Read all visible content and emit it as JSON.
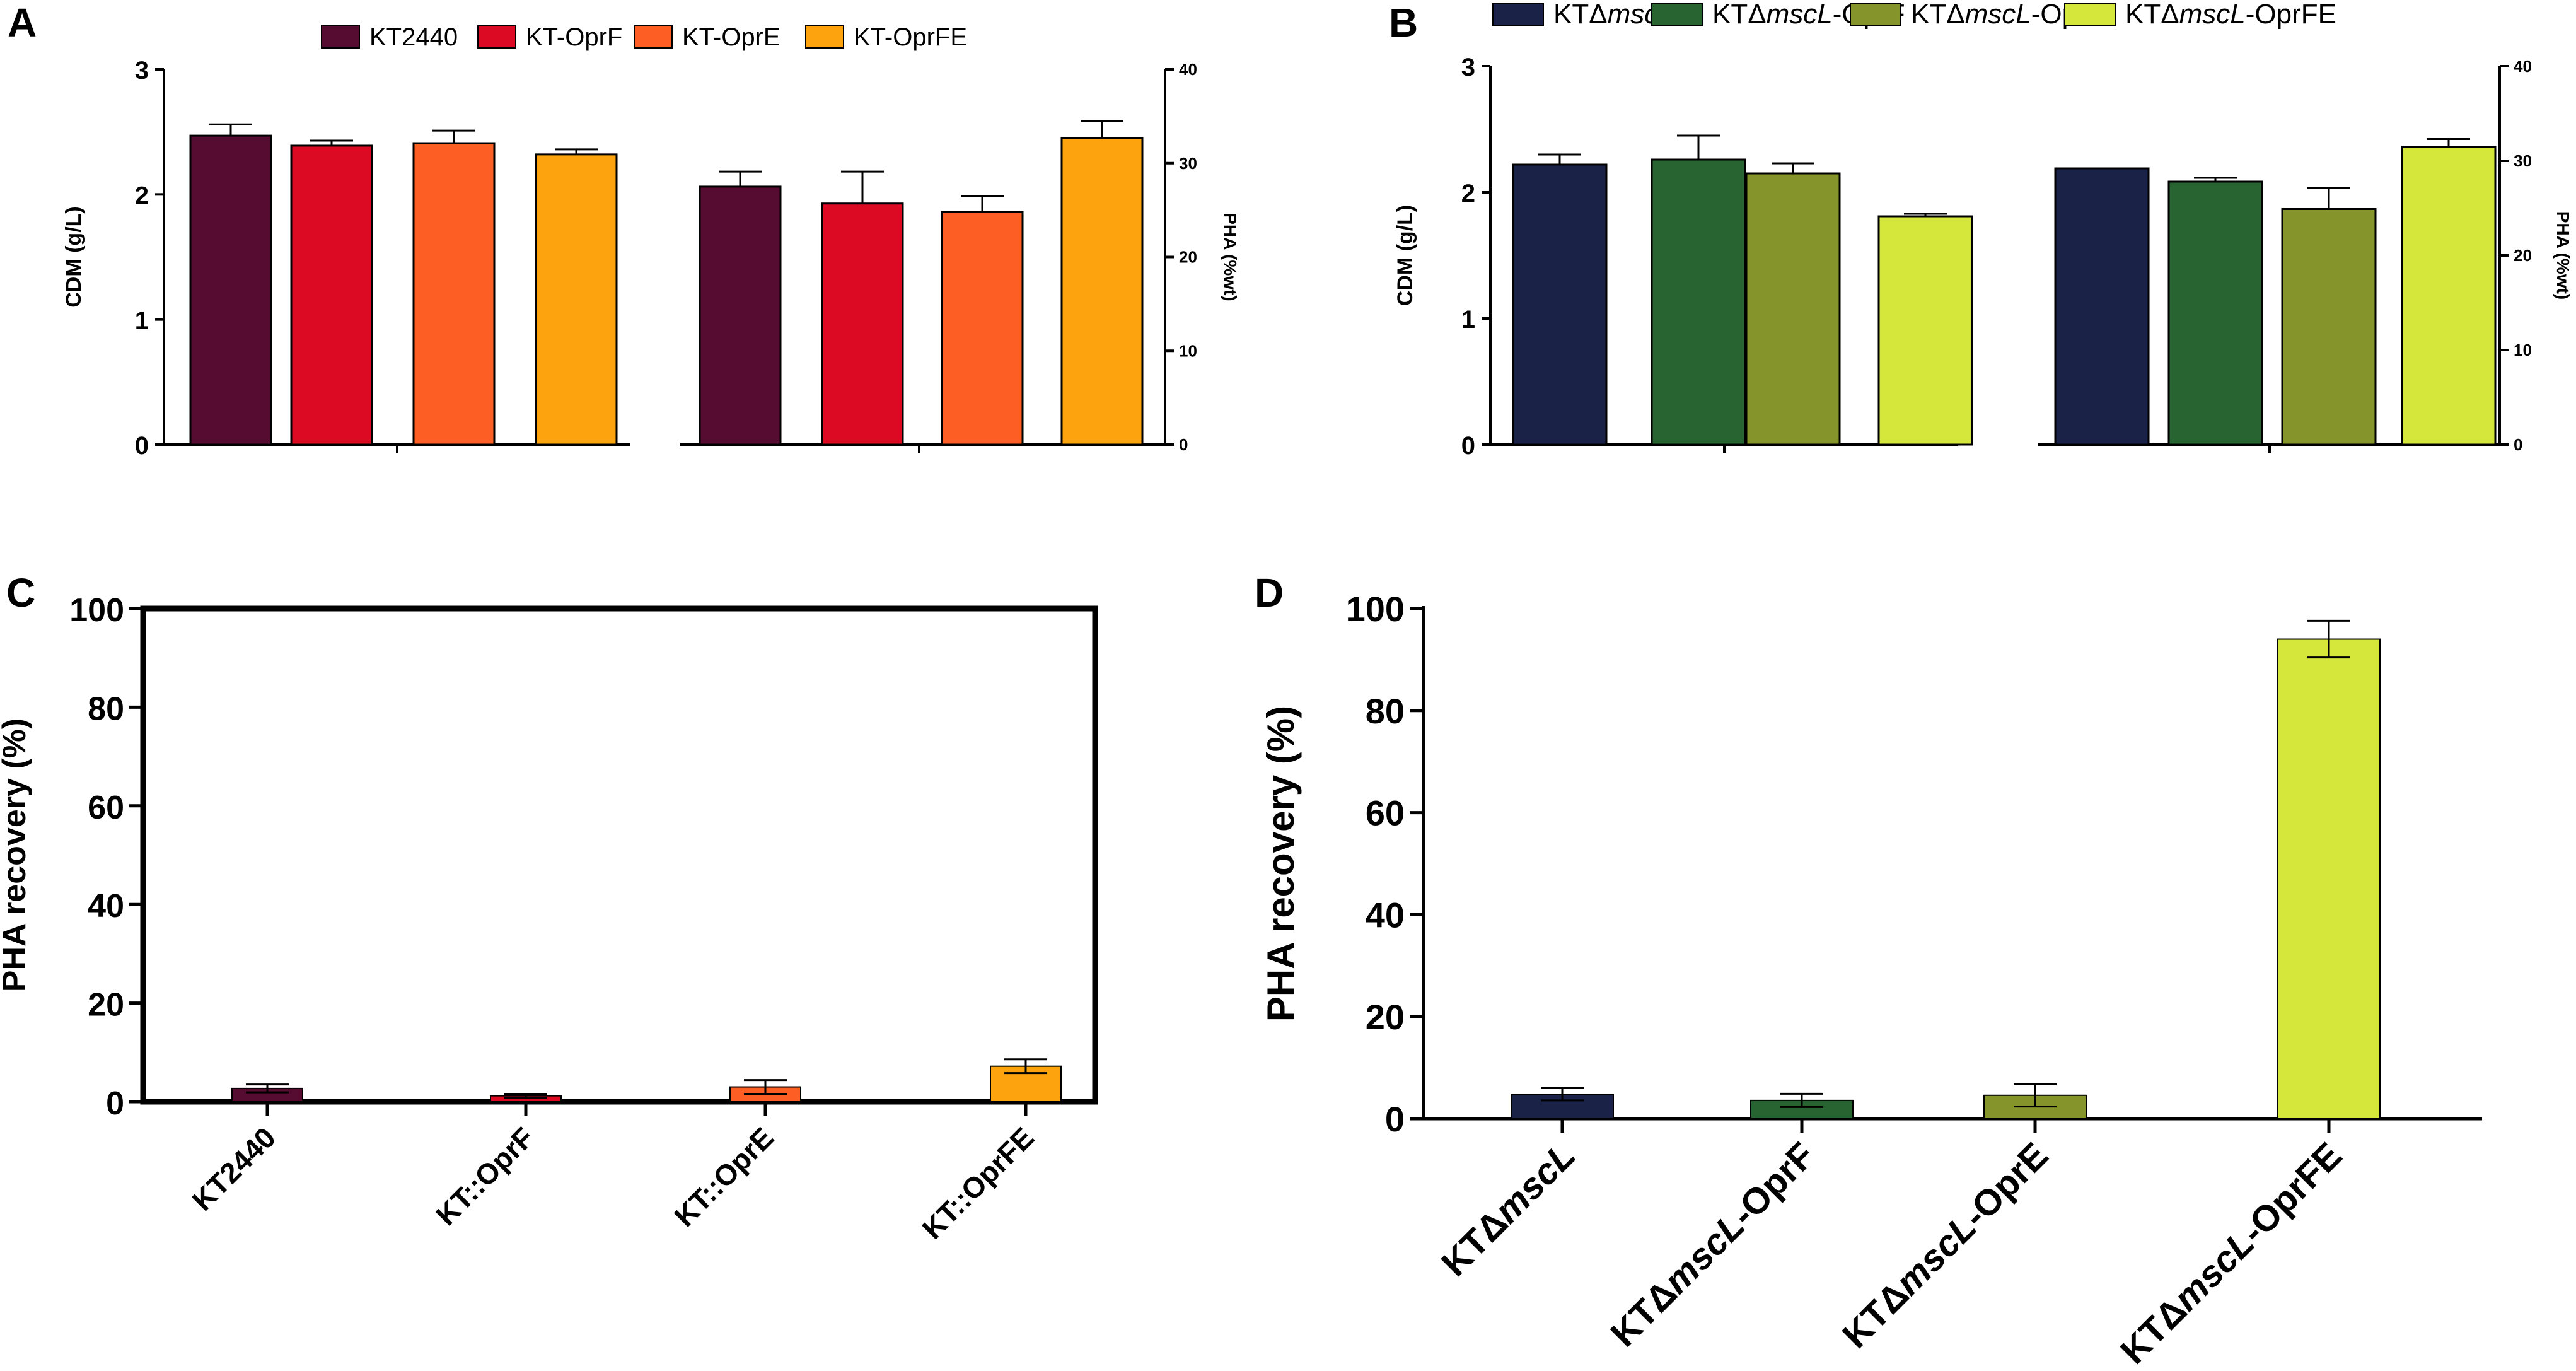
{
  "chart_data": [
    {
      "panel": "A",
      "type": "bar",
      "legend": [
        {
          "label": "KT2440",
          "color": "#560b31"
        },
        {
          "label": "KT-OprF",
          "color": "#dc0b23"
        },
        {
          "label": "KT-OprE",
          "color": "#fd5e24"
        },
        {
          "label": "KT-OprFE",
          "color": "#fda30d"
        }
      ],
      "left_axis": {
        "label": "CDM (g/L)",
        "range": [
          0,
          3
        ],
        "ticks": [
          0,
          1,
          2,
          3
        ],
        "tick_labels": [
          "0",
          "1",
          "2",
          "3"
        ]
      },
      "right_axis": {
        "label": "PHA (%wt)",
        "range": [
          0,
          40
        ],
        "ticks": [
          0,
          10,
          20,
          30,
          40
        ],
        "tick_labels": [
          "0",
          "10",
          "20",
          "30",
          "40"
        ]
      },
      "series": [
        {
          "name": "CDM",
          "axis": "left",
          "values": [
            2.47,
            2.39,
            2.41,
            2.32
          ],
          "errors": [
            0.09,
            0.04,
            0.1,
            0.04
          ]
        },
        {
          "name": "PHA",
          "axis": "right",
          "values": [
            27.5,
            25.7,
            24.8,
            32.7
          ],
          "errors": [
            1.6,
            3.4,
            1.7,
            1.8
          ]
        }
      ]
    },
    {
      "panel": "B",
      "type": "bar",
      "legend": [
        {
          "prefix": "KTΔ",
          "italic": "mscL",
          "suffix": "",
          "color": "#1b2247"
        },
        {
          "prefix": "KTΔ",
          "italic": "mscL",
          "suffix": "-OprF",
          "color": "#276431"
        },
        {
          "prefix": "KTΔ",
          "italic": "mscL",
          "suffix": "-OprE",
          "color": "#85952b"
        },
        {
          "prefix": "KTΔ",
          "italic": "mscL",
          "suffix": "-OprFE",
          "color": "#d6e73c"
        }
      ],
      "left_axis": {
        "label": "CDM (g/L)",
        "range": [
          0,
          3
        ],
        "ticks": [
          0,
          1,
          2,
          3
        ],
        "tick_labels": [
          "0",
          "1",
          "2",
          "3"
        ]
      },
      "right_axis": {
        "label": "PHA (%wt)",
        "range": [
          0,
          40
        ],
        "ticks": [
          0,
          10,
          20,
          30,
          40
        ],
        "tick_labels": [
          "0",
          "10",
          "20",
          "30",
          "40"
        ]
      },
      "series": [
        {
          "name": "CDM",
          "axis": "left",
          "values": [
            2.22,
            2.26,
            2.15,
            1.81
          ],
          "errors": [
            0.08,
            0.19,
            0.08,
            0.02
          ]
        },
        {
          "name": "PHA",
          "axis": "right",
          "values": [
            29.2,
            27.8,
            24.9,
            31.5
          ],
          "errors": [
            0.0,
            0.4,
            2.2,
            0.8
          ]
        }
      ]
    },
    {
      "panel": "C",
      "type": "bar",
      "ylabel": "PHA recovery (%)",
      "ylim": [
        0,
        100
      ],
      "yticks": [
        0,
        20,
        40,
        60,
        80,
        100
      ],
      "ytick_labels": [
        "0",
        "20",
        "40",
        "60",
        "80",
        "100"
      ],
      "categories": [
        "KT2440",
        "KT::OprF",
        "KT::OprE",
        "KT::OprFE"
      ],
      "colors": [
        "#560b31",
        "#dc0b23",
        "#fd5e24",
        "#fda30d"
      ],
      "values": [
        2.7,
        1.2,
        3.0,
        7.2
      ],
      "errors": [
        0.8,
        0.4,
        1.4,
        1.4
      ]
    },
    {
      "panel": "D",
      "type": "bar",
      "ylabel": "PHA recovery (%)",
      "ylim": [
        0,
        100
      ],
      "yticks": [
        0,
        20,
        40,
        60,
        80,
        100
      ],
      "ytick_labels": [
        "0",
        "20",
        "40",
        "60",
        "80",
        "100"
      ],
      "categories": [
        {
          "prefix": "KTΔ",
          "italic": "mscL",
          "suffix": ""
        },
        {
          "prefix": "KTΔ",
          "italic": "mscL",
          "suffix": "-OprF"
        },
        {
          "prefix": "KTΔ",
          "italic": "mscL",
          "suffix": "-OprE"
        },
        {
          "prefix": "KTΔ",
          "italic": "mscL",
          "suffix": "-OprFE"
        }
      ],
      "colors": [
        "#1b2247",
        "#276431",
        "#85952b",
        "#d6e73c"
      ],
      "values": [
        4.8,
        3.6,
        4.6,
        94.0
      ],
      "errors": [
        1.2,
        1.3,
        2.2,
        3.6
      ]
    }
  ]
}
